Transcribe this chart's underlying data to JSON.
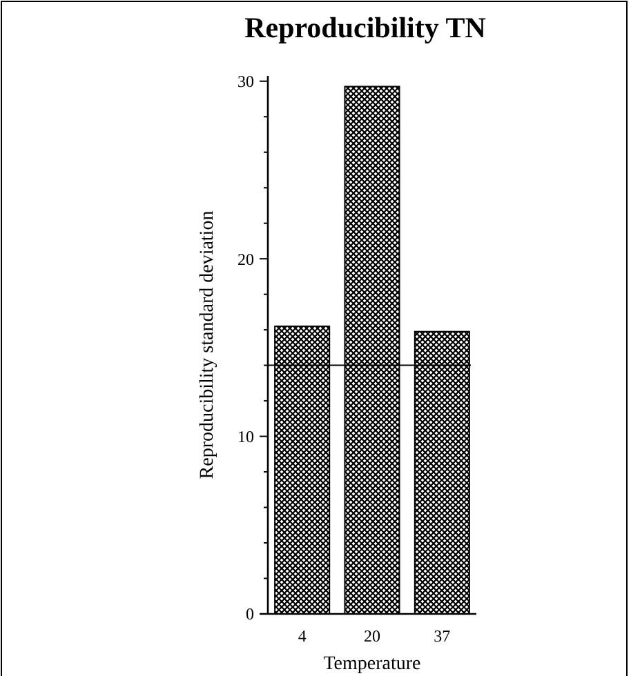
{
  "chart_data": {
    "type": "bar",
    "title": "Reproducibility  TN",
    "xlabel": "Temperature",
    "ylabel": "Reproducibility  standard  deviation",
    "categories": [
      "4",
      "20",
      "37"
    ],
    "values": [
      16.2,
      29.7,
      15.9
    ],
    "color": "#000000",
    "ylim": [
      0,
      30.3
    ],
    "yticks": [
      0,
      {
        "value": 2,
        "label": null
      },
      {
        "value": 4,
        "label": null
      },
      {
        "value": 6,
        "label": null
      },
      {
        "value": 8,
        "label": null
      },
      10,
      {
        "value": 12,
        "label": null
      },
      {
        "value": 14,
        "label": null
      },
      {
        "value": 16,
        "label": null
      },
      {
        "value": 18,
        "label": null
      },
      20,
      {
        "value": 22,
        "label": null
      },
      {
        "value": 24,
        "label": null
      },
      {
        "value": 26,
        "label": null
      },
      {
        "value": 28,
        "label": null
      },
      30
    ],
    "ref_lines": [
      {
        "axis": "y",
        "value": 14,
        "color": "#000000"
      }
    ],
    "grid": false
  }
}
